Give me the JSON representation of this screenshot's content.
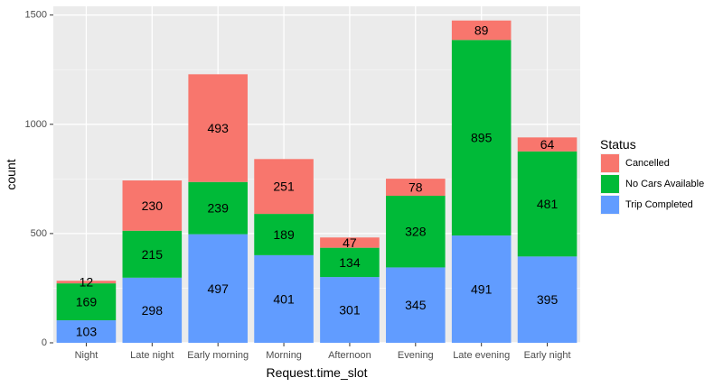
{
  "chart_data": {
    "type": "bar",
    "stacked": true,
    "categories": [
      "Night",
      "Late night",
      "Early morning",
      "Morning",
      "Afternoon",
      "Evening",
      "Late evening",
      "Early night"
    ],
    "series": [
      {
        "name": "Trip Completed",
        "color": "#619CFF",
        "values": [
          103,
          298,
          497,
          401,
          301,
          345,
          491,
          395
        ]
      },
      {
        "name": "No Cars Available",
        "color": "#00BA38",
        "values": [
          169,
          215,
          239,
          189,
          134,
          328,
          895,
          481
        ]
      },
      {
        "name": "Cancelled",
        "color": "#F8766D",
        "values": [
          12,
          230,
          493,
          251,
          47,
          78,
          89,
          64
        ]
      }
    ],
    "stack_order": [
      "Trip Completed",
      "No Cars Available",
      "Cancelled"
    ],
    "xlabel": "Request.time_slot",
    "ylabel": "count",
    "ylim": [
      0,
      1540
    ],
    "yticks": [
      0,
      500,
      1000,
      1500
    ],
    "grid": true,
    "panel_background": "#EBEBEB",
    "legend": {
      "title": "Status",
      "placement": "right",
      "entries": [
        "Cancelled",
        "No Cars Available",
        "Trip Completed"
      ]
    }
  }
}
